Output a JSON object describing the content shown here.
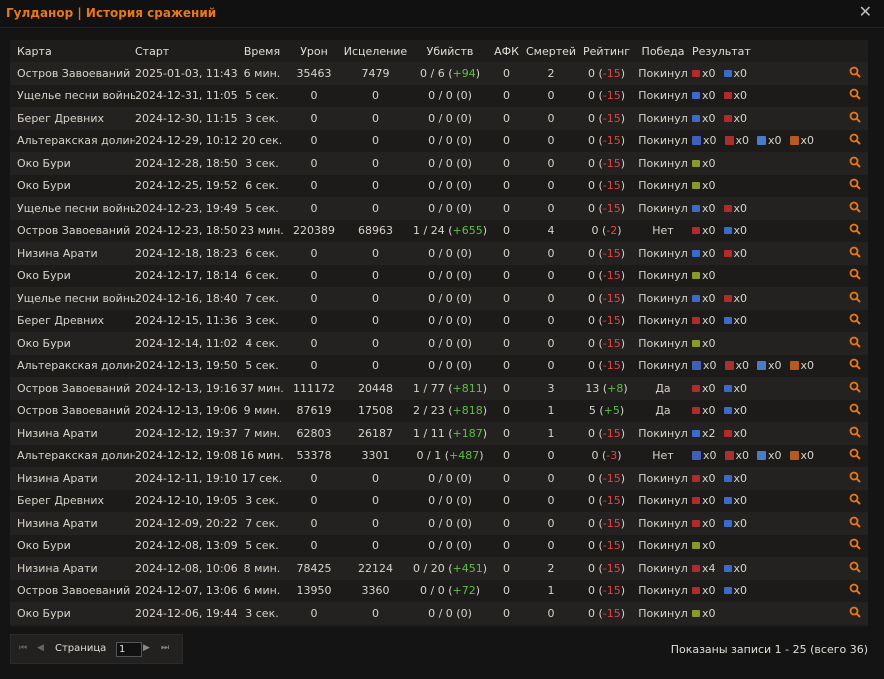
{
  "window": {
    "title": "Гулданор | История сражений"
  },
  "columns": [
    "Карта",
    "Старт",
    "Время",
    "Урон",
    "Исцеление",
    "Убийств",
    "АФК",
    "Смертей",
    "Рейтинг",
    "Победа",
    "Результат"
  ],
  "rows": [
    {
      "map": "Остров Завоеваний",
      "start": "2025-01-03, 11:43",
      "time": "6 мин.",
      "damage": "35463",
      "heal": "7479",
      "kills": "0 / 6 (",
      "kdelta": "+94",
      "ktail": ")",
      "afk": "0",
      "deaths": "2",
      "rating": "0 (",
      "rdelta": "-15",
      "rtail": ")",
      "win": "Покинул",
      "result": [
        {
          "icon": "horde-flag-icon",
          "text": "x0"
        },
        {
          "icon": "alliance-flag-icon",
          "text": "x0"
        }
      ]
    },
    {
      "map": "Ущелье песни войны",
      "start": "2024-12-31, 11:05",
      "time": "5 сек.",
      "damage": "0",
      "heal": "0",
      "kills": "0 / 0 (0)",
      "kdelta": "",
      "ktail": "",
      "afk": "0",
      "deaths": "0",
      "rating": "0 (",
      "rdelta": "-15",
      "rtail": ")",
      "win": "Покинул",
      "result": [
        {
          "icon": "alliance-flag-icon",
          "text": "x0"
        },
        {
          "icon": "horde-flag-icon",
          "text": "x0"
        }
      ]
    },
    {
      "map": "Берег Древних",
      "start": "2024-12-30, 11:15",
      "time": "3 сек.",
      "damage": "0",
      "heal": "0",
      "kills": "0 / 0 (0)",
      "kdelta": "",
      "ktail": "",
      "afk": "0",
      "deaths": "0",
      "rating": "0 (",
      "rdelta": "-15",
      "rtail": ")",
      "win": "Покинул",
      "result": [
        {
          "icon": "alliance-flag-icon",
          "text": "x0"
        },
        {
          "icon": "horde-flag-icon",
          "text": "x0"
        }
      ]
    },
    {
      "map": "Альтеракская долина",
      "start": "2024-12-29, 10:12",
      "time": "20 сек.",
      "damage": "0",
      "heal": "0",
      "kills": "0 / 0 (0)",
      "kdelta": "",
      "ktail": "",
      "afk": "0",
      "deaths": "0",
      "rating": "0 (",
      "rdelta": "-15",
      "rtail": ")",
      "win": "Покинул",
      "result": [
        {
          "icon": "alliance-tower-icon",
          "text": "x0"
        },
        {
          "icon": "horde-tower-icon",
          "text": "x0"
        },
        {
          "icon": "alliance-graveyard-icon",
          "text": "x0"
        },
        {
          "icon": "horde-graveyard-icon",
          "text": "x0"
        }
      ]
    },
    {
      "map": "Око Бури",
      "start": "2024-12-28, 18:50",
      "time": "3 сек.",
      "damage": "0",
      "heal": "0",
      "kills": "0 / 0 (0)",
      "kdelta": "",
      "ktail": "",
      "afk": "0",
      "deaths": "0",
      "rating": "0 (",
      "rdelta": "-15",
      "rtail": ")",
      "win": "Покинул",
      "result": [
        {
          "icon": "neutral-flag-icon",
          "text": "x0"
        }
      ]
    },
    {
      "map": "Око Бури",
      "start": "2024-12-25, 19:52",
      "time": "6 сек.",
      "damage": "0",
      "heal": "0",
      "kills": "0 / 0 (0)",
      "kdelta": "",
      "ktail": "",
      "afk": "0",
      "deaths": "0",
      "rating": "0 (",
      "rdelta": "-15",
      "rtail": ")",
      "win": "Покинул",
      "result": [
        {
          "icon": "neutral-flag-icon",
          "text": "x0"
        }
      ]
    },
    {
      "map": "Ущелье песни войны",
      "start": "2024-12-23, 19:49",
      "time": "5 сек.",
      "damage": "0",
      "heal": "0",
      "kills": "0 / 0 (0)",
      "kdelta": "",
      "ktail": "",
      "afk": "0",
      "deaths": "0",
      "rating": "0 (",
      "rdelta": "-15",
      "rtail": ")",
      "win": "Покинул",
      "result": [
        {
          "icon": "alliance-flag-icon",
          "text": "x0"
        },
        {
          "icon": "horde-flag-icon",
          "text": "x0"
        }
      ]
    },
    {
      "map": "Остров Завоеваний",
      "start": "2024-12-23, 18:50",
      "time": "23 мин.",
      "damage": "220389",
      "heal": "68963",
      "kills": "1 / 24 (",
      "kdelta": "+655",
      "ktail": ")",
      "afk": "0",
      "deaths": "4",
      "rating": "0 (",
      "rdelta": "-2",
      "rtail": ")",
      "win": "Нет",
      "result": [
        {
          "icon": "horde-flag-icon",
          "text": "x0"
        },
        {
          "icon": "alliance-flag-icon",
          "text": "x0"
        }
      ]
    },
    {
      "map": "Низина Арати",
      "start": "2024-12-18, 18:23",
      "time": "6 сек.",
      "damage": "0",
      "heal": "0",
      "kills": "0 / 0 (0)",
      "kdelta": "",
      "ktail": "",
      "afk": "0",
      "deaths": "0",
      "rating": "0 (",
      "rdelta": "-15",
      "rtail": ")",
      "win": "Покинул",
      "result": [
        {
          "icon": "alliance-flag-icon",
          "text": "x0"
        },
        {
          "icon": "horde-flag-icon",
          "text": "x0"
        }
      ]
    },
    {
      "map": "Око Бури",
      "start": "2024-12-17, 18:14",
      "time": "6 сек.",
      "damage": "0",
      "heal": "0",
      "kills": "0 / 0 (0)",
      "kdelta": "",
      "ktail": "",
      "afk": "0",
      "deaths": "0",
      "rating": "0 (",
      "rdelta": "-15",
      "rtail": ")",
      "win": "Покинул",
      "result": [
        {
          "icon": "neutral-flag-icon",
          "text": "x0"
        }
      ]
    },
    {
      "map": "Ущелье песни войны",
      "start": "2024-12-16, 18:40",
      "time": "7 сек.",
      "damage": "0",
      "heal": "0",
      "kills": "0 / 0 (0)",
      "kdelta": "",
      "ktail": "",
      "afk": "0",
      "deaths": "0",
      "rating": "0 (",
      "rdelta": "-15",
      "rtail": ")",
      "win": "Покинул",
      "result": [
        {
          "icon": "alliance-flag-icon",
          "text": "x0"
        },
        {
          "icon": "horde-flag-icon",
          "text": "x0"
        }
      ]
    },
    {
      "map": "Берег Древних",
      "start": "2024-12-15, 11:36",
      "time": "3 сек.",
      "damage": "0",
      "heal": "0",
      "kills": "0 / 0 (0)",
      "kdelta": "",
      "ktail": "",
      "afk": "0",
      "deaths": "0",
      "rating": "0 (",
      "rdelta": "-15",
      "rtail": ")",
      "win": "Покинул",
      "result": [
        {
          "icon": "horde-flag-icon",
          "text": "x0"
        },
        {
          "icon": "alliance-flag-icon",
          "text": "x0"
        }
      ]
    },
    {
      "map": "Око Бури",
      "start": "2024-12-14, 11:02",
      "time": "4 сек.",
      "damage": "0",
      "heal": "0",
      "kills": "0 / 0 (0)",
      "kdelta": "",
      "ktail": "",
      "afk": "0",
      "deaths": "0",
      "rating": "0 (",
      "rdelta": "-15",
      "rtail": ")",
      "win": "Покинул",
      "result": [
        {
          "icon": "neutral-flag-icon",
          "text": "x0"
        }
      ]
    },
    {
      "map": "Альтеракская долина",
      "start": "2024-12-13, 19:50",
      "time": "5 сек.",
      "damage": "0",
      "heal": "0",
      "kills": "0 / 0 (0)",
      "kdelta": "",
      "ktail": "",
      "afk": "0",
      "deaths": "0",
      "rating": "0 (",
      "rdelta": "-15",
      "rtail": ")",
      "win": "Покинул",
      "result": [
        {
          "icon": "alliance-tower-icon",
          "text": "x0"
        },
        {
          "icon": "horde-tower-icon",
          "text": "x0"
        },
        {
          "icon": "alliance-graveyard-icon",
          "text": "x0"
        },
        {
          "icon": "horde-graveyard-icon",
          "text": "x0"
        }
      ]
    },
    {
      "map": "Остров Завоеваний",
      "start": "2024-12-13, 19:16",
      "time": "37 мин.",
      "damage": "111172",
      "heal": "20448",
      "kills": "1 / 77 (",
      "kdelta": "+811",
      "ktail": ")",
      "afk": "0",
      "deaths": "3",
      "rating": "13 (",
      "rdelta": "+8",
      "rtail": ")",
      "win": "Да",
      "result": [
        {
          "icon": "horde-flag-icon",
          "text": "x0"
        },
        {
          "icon": "alliance-flag-icon",
          "text": "x0"
        }
      ]
    },
    {
      "map": "Остров Завоеваний",
      "start": "2024-12-13, 19:06",
      "time": "9 мин.",
      "damage": "87619",
      "heal": "17508",
      "kills": "2 / 23 (",
      "kdelta": "+818",
      "ktail": ")",
      "afk": "0",
      "deaths": "1",
      "rating": "5 (",
      "rdelta": "+5",
      "rtail": ")",
      "win": "Да",
      "result": [
        {
          "icon": "horde-flag-icon",
          "text": "x0"
        },
        {
          "icon": "alliance-flag-icon",
          "text": "x0"
        }
      ]
    },
    {
      "map": "Низина Арати",
      "start": "2024-12-12, 19:37",
      "time": "7 мин.",
      "damage": "62803",
      "heal": "26187",
      "kills": "1 / 11 (",
      "kdelta": "+187",
      "ktail": ")",
      "afk": "0",
      "deaths": "1",
      "rating": "0 (",
      "rdelta": "-15",
      "rtail": ")",
      "win": "Покинул",
      "result": [
        {
          "icon": "alliance-flag-icon",
          "text": "x2"
        },
        {
          "icon": "horde-flag-icon",
          "text": "x0"
        }
      ]
    },
    {
      "map": "Альтеракская долина",
      "start": "2024-12-12, 19:08",
      "time": "16 мин.",
      "damage": "53378",
      "heal": "3301",
      "kills": "0 / 1 (",
      "kdelta": "+487",
      "ktail": ")",
      "afk": "0",
      "deaths": "0",
      "rating": "0 (",
      "rdelta": "-3",
      "rtail": ")",
      "win": "Нет",
      "result": [
        {
          "icon": "alliance-tower-icon",
          "text": "x0"
        },
        {
          "icon": "horde-tower-icon",
          "text": "x0"
        },
        {
          "icon": "alliance-graveyard-icon",
          "text": "x0"
        },
        {
          "icon": "horde-graveyard-icon",
          "text": "x0"
        }
      ]
    },
    {
      "map": "Низина Арати",
      "start": "2024-12-11, 19:10",
      "time": "17 сек.",
      "damage": "0",
      "heal": "0",
      "kills": "0 / 0 (0)",
      "kdelta": "",
      "ktail": "",
      "afk": "0",
      "deaths": "0",
      "rating": "0 (",
      "rdelta": "-15",
      "rtail": ")",
      "win": "Покинул",
      "result": [
        {
          "icon": "horde-flag-icon",
          "text": "x0"
        },
        {
          "icon": "alliance-flag-icon",
          "text": "x0"
        }
      ]
    },
    {
      "map": "Берег Древних",
      "start": "2024-12-10, 19:05",
      "time": "3 сек.",
      "damage": "0",
      "heal": "0",
      "kills": "0 / 0 (0)",
      "kdelta": "",
      "ktail": "",
      "afk": "0",
      "deaths": "0",
      "rating": "0 (",
      "rdelta": "-15",
      "rtail": ")",
      "win": "Покинул",
      "result": [
        {
          "icon": "horde-flag-icon",
          "text": "x0"
        },
        {
          "icon": "alliance-flag-icon",
          "text": "x0"
        }
      ]
    },
    {
      "map": "Низина Арати",
      "start": "2024-12-09, 20:22",
      "time": "7 сек.",
      "damage": "0",
      "heal": "0",
      "kills": "0 / 0 (0)",
      "kdelta": "",
      "ktail": "",
      "afk": "0",
      "deaths": "0",
      "rating": "0 (",
      "rdelta": "-15",
      "rtail": ")",
      "win": "Покинул",
      "result": [
        {
          "icon": "horde-flag-icon",
          "text": "x0"
        },
        {
          "icon": "alliance-flag-icon",
          "text": "x0"
        }
      ]
    },
    {
      "map": "Око Бури",
      "start": "2024-12-08, 13:09",
      "time": "5 сек.",
      "damage": "0",
      "heal": "0",
      "kills": "0 / 0 (0)",
      "kdelta": "",
      "ktail": "",
      "afk": "0",
      "deaths": "0",
      "rating": "0 (",
      "rdelta": "-15",
      "rtail": ")",
      "win": "Покинул",
      "result": [
        {
          "icon": "neutral-flag-icon",
          "text": "x0"
        }
      ]
    },
    {
      "map": "Низина Арати",
      "start": "2024-12-08, 10:06",
      "time": "8 мин.",
      "damage": "78425",
      "heal": "22124",
      "kills": "0 / 20 (",
      "kdelta": "+451",
      "ktail": ")",
      "afk": "0",
      "deaths": "2",
      "rating": "0 (",
      "rdelta": "-15",
      "rtail": ")",
      "win": "Покинул",
      "result": [
        {
          "icon": "horde-flag-icon",
          "text": "x4"
        },
        {
          "icon": "alliance-flag-icon",
          "text": "x0"
        }
      ]
    },
    {
      "map": "Остров Завоеваний",
      "start": "2024-12-07, 13:06",
      "time": "6 мин.",
      "damage": "13950",
      "heal": "3360",
      "kills": "0 / 0 (",
      "kdelta": "+72",
      "ktail": ")",
      "afk": "0",
      "deaths": "1",
      "rating": "0 (",
      "rdelta": "-15",
      "rtail": ")",
      "win": "Покинул",
      "result": [
        {
          "icon": "horde-flag-icon",
          "text": "x0"
        },
        {
          "icon": "alliance-flag-icon",
          "text": "x0"
        }
      ]
    },
    {
      "map": "Око Бури",
      "start": "2024-12-06, 19:44",
      "time": "3 сек.",
      "damage": "0",
      "heal": "0",
      "kills": "0 / 0 (0)",
      "kdelta": "",
      "ktail": "",
      "afk": "0",
      "deaths": "0",
      "rating": "0 (",
      "rdelta": "-15",
      "rtail": ")",
      "win": "Покинул",
      "result": [
        {
          "icon": "neutral-flag-icon",
          "text": "x0"
        }
      ]
    }
  ],
  "pager": {
    "label": "Страница",
    "value": "1"
  },
  "info": "Показаны записи 1 - 25 (всего 36)",
  "colors": {
    "accent": "#e8771a",
    "positive": "#5fbf45",
    "negative": "#e04646"
  }
}
